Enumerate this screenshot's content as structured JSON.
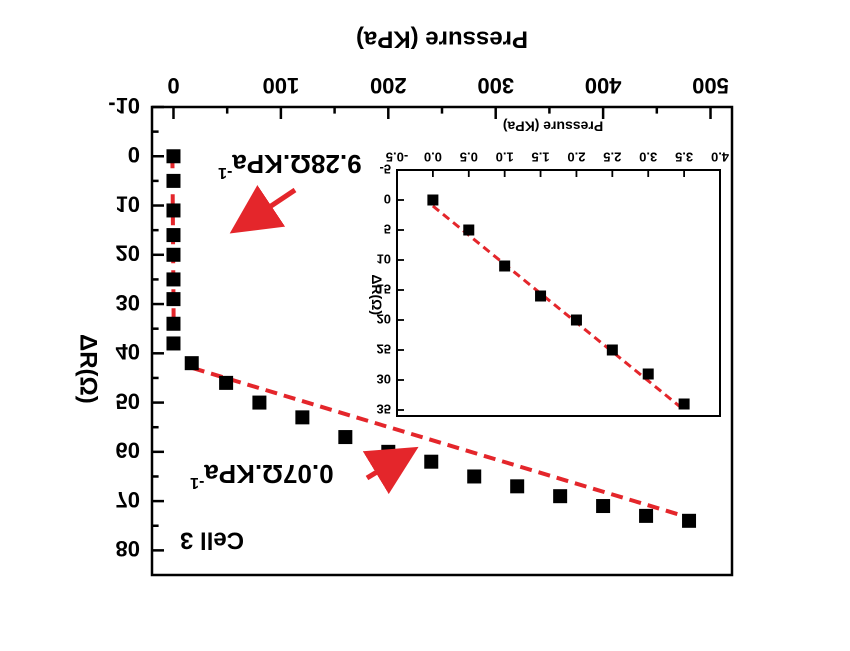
{
  "chart_data": [
    {
      "type": "scatter",
      "title": "",
      "xlabel": "Pressure (KPa)",
      "ylabel": "ΔR(Ω)",
      "xlim": [
        -20,
        520
      ],
      "ylim": [
        -10,
        85
      ],
      "x_ticks": [
        0,
        100,
        200,
        300,
        400,
        500
      ],
      "y_ticks": [
        -10,
        0,
        10,
        20,
        30,
        40,
        50,
        60,
        70,
        80
      ],
      "series": [
        {
          "x": [
            0,
            0,
            0,
            0,
            0,
            0,
            0,
            0,
            0,
            17,
            49,
            80,
            120,
            160,
            200,
            240,
            280,
            320,
            360,
            400,
            440,
            480
          ],
          "y": [
            0,
            5,
            11,
            16,
            20,
            25,
            29,
            34,
            38,
            42,
            46,
            50,
            53,
            57,
            60,
            62,
            65,
            67,
            69,
            71,
            73,
            74
          ]
        }
      ],
      "fit_lines": [
        {
          "x": [
            -1,
            0.2
          ],
          "y": [
            0,
            35
          ]
        },
        {
          "x": [
            18,
            490
          ],
          "y": [
            43,
            74
          ]
        }
      ],
      "annotations": [
        {
          "text": "9.28Ω.KPa",
          "superscript": "-1"
        },
        {
          "text": "0.07Ω.KPa",
          "superscript": "-1"
        },
        {
          "text": "Cell 3"
        }
      ]
    },
    {
      "type": "scatter",
      "title": "",
      "xlabel": "Pressure (KPa)",
      "ylabel": "ΔR(Ω)",
      "xlim": [
        -0.5,
        4.0
      ],
      "ylim": [
        -5,
        36
      ],
      "x_ticks": [
        -0.5,
        0.0,
        0.5,
        1.0,
        1.5,
        2.0,
        2.5,
        3.0,
        3.5,
        4.0
      ],
      "y_ticks": [
        -5,
        0,
        5,
        10,
        15,
        20,
        25,
        30,
        35
      ],
      "x_tick_labels": [
        "-0.5",
        "0.0",
        "0.5",
        "1.0",
        "1.5",
        "2.0",
        "2.5",
        "3.0",
        "3.5",
        "4.0"
      ],
      "series": [
        {
          "x": [
            0.0,
            0.5,
            1.0,
            1.5,
            2.0,
            2.5,
            3.0,
            3.5
          ],
          "y": [
            0,
            5,
            11,
            16,
            20,
            25,
            29,
            34
          ]
        }
      ],
      "fit_lines": [
        {
          "x": [
            0.0,
            3.5
          ],
          "y": [
            1,
            35
          ]
        }
      ]
    }
  ],
  "style": {
    "marker_color": "#000000",
    "fit_color": "#e4262b",
    "arrow_color": "#e4262b"
  }
}
